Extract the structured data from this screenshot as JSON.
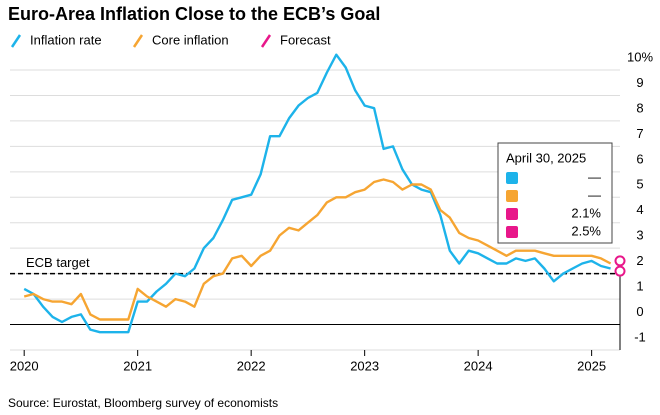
{
  "chart_data": {
    "type": "line",
    "title": "Euro-Area Inflation Close to the ECB’s Goal",
    "source": "Source: Eurostat, Bloomberg survey of economists",
    "x": [
      2020,
      2020.083,
      2020.167,
      2020.25,
      2020.333,
      2020.417,
      2020.5,
      2020.583,
      2020.667,
      2020.75,
      2020.833,
      2020.917,
      2021,
      2021.083,
      2021.167,
      2021.25,
      2021.333,
      2021.417,
      2021.5,
      2021.583,
      2021.667,
      2021.75,
      2021.833,
      2021.917,
      2022,
      2022.083,
      2022.167,
      2022.25,
      2022.333,
      2022.417,
      2022.5,
      2022.583,
      2022.667,
      2022.75,
      2022.833,
      2022.917,
      2023,
      2023.083,
      2023.167,
      2023.25,
      2023.333,
      2023.417,
      2023.5,
      2023.583,
      2023.667,
      2023.75,
      2023.833,
      2023.917,
      2024,
      2024.083,
      2024.167,
      2024.25,
      2024.333,
      2024.417,
      2024.5,
      2024.583,
      2024.667,
      2024.75,
      2024.833,
      2024.917,
      2025,
      2025.083,
      2025.167
    ],
    "series": [
      {
        "name": "Inflation rate",
        "color": "#1db3ea",
        "values": [
          1.4,
          1.2,
          0.7,
          0.3,
          0.1,
          0.3,
          0.4,
          -0.2,
          -0.3,
          -0.3,
          -0.3,
          -0.3,
          0.9,
          0.9,
          1.3,
          1.6,
          2.0,
          1.9,
          2.2,
          3.0,
          3.4,
          4.1,
          4.9,
          5.0,
          5.1,
          5.9,
          7.4,
          7.4,
          8.1,
          8.6,
          8.9,
          9.1,
          9.9,
          10.6,
          10.1,
          9.2,
          8.6,
          8.5,
          6.9,
          7.0,
          6.1,
          5.5,
          5.3,
          5.2,
          4.3,
          2.9,
          2.4,
          2.9,
          2.8,
          2.6,
          2.4,
          2.4,
          2.6,
          2.5,
          2.6,
          2.2,
          1.7,
          2.0,
          2.2,
          2.4,
          2.5,
          2.3,
          2.2
        ]
      },
      {
        "name": "Core inflation",
        "color": "#f6a532",
        "values": [
          1.1,
          1.2,
          1.0,
          0.9,
          0.9,
          0.8,
          1.2,
          0.4,
          0.2,
          0.2,
          0.2,
          0.2,
          1.4,
          1.1,
          0.9,
          0.7,
          1.0,
          0.9,
          0.7,
          1.6,
          1.9,
          2.0,
          2.6,
          2.7,
          2.3,
          2.7,
          2.9,
          3.5,
          3.8,
          3.7,
          4.0,
          4.3,
          4.8,
          5.0,
          5.0,
          5.2,
          5.3,
          5.6,
          5.7,
          5.6,
          5.3,
          5.5,
          5.5,
          5.3,
          4.5,
          4.2,
          3.6,
          3.4,
          3.3,
          3.1,
          2.9,
          2.7,
          2.9,
          2.9,
          2.9,
          2.8,
          2.7,
          2.7,
          2.7,
          2.7,
          2.7,
          2.6,
          2.4
        ]
      },
      {
        "name": "Forecast",
        "color": "#e8178a",
        "x": [
          2025.25,
          2025.25
        ],
        "values": [
          2.1,
          2.5
        ]
      }
    ],
    "xlim": [
      2019.875,
      2025.25
    ],
    "xticks": [
      2020,
      2021,
      2022,
      2023,
      2024,
      2025
    ],
    "ylim": [
      -1,
      10
    ],
    "yticks": [
      -1,
      0,
      1,
      2,
      3,
      4,
      5,
      6,
      7,
      8,
      9,
      {
        "value": 10,
        "label": "10%"
      }
    ],
    "grid": true,
    "target": {
      "label": "ECB target",
      "value": 2
    },
    "tooltip": {
      "date": "April 30, 2025",
      "rows": [
        "—",
        "—",
        "2.1%",
        "2.5%"
      ]
    }
  }
}
